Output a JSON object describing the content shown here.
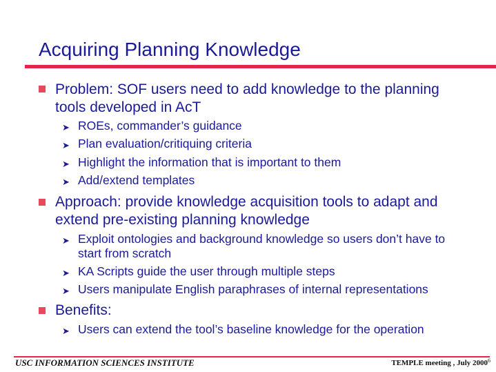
{
  "title": "Acquiring Planning Knowledge",
  "bullets": [
    {
      "text": "Problem: SOF users need to add knowledge to the planning tools developed in AcT",
      "subs": [
        "ROEs, commander’s guidance",
        "Plan evaluation/critiquing criteria",
        "Highlight the information that is important to them",
        "Add/extend templates"
      ]
    },
    {
      "text": "Approach: provide knowledge acquisition tools to adapt and extend pre-existing planning knowledge",
      "subs": [
        "Exploit ontologies and background knowledge so users don’t have to start from scratch",
        "KA Scripts guide the user through multiple steps",
        "Users manipulate English paraphrases of internal representations"
      ]
    },
    {
      "text": "Benefits:",
      "subs": [
        "Users can extend the tool’s baseline knowledge for the operation"
      ]
    }
  ],
  "footer": {
    "left": "USC INFORMATION SCIENCES INSTITUTE",
    "right": "TEMPLE meeting , July 2000",
    "page": "6"
  },
  "icons": {
    "bullet": "square-bullet-icon",
    "sub_bullet": "arrow-bullet-icon"
  },
  "colors": {
    "text": "#1a1a99",
    "accent": "#e2264a",
    "bullet": "#e44a5c"
  }
}
